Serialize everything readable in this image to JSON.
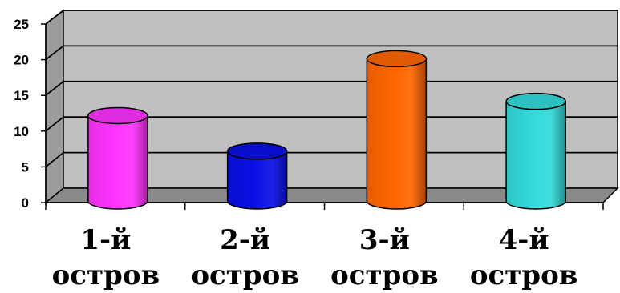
{
  "chart_data": {
    "type": "bar",
    "style": "3d-cylinder",
    "categories": [
      {
        "line1": "1-й",
        "line2": "остров"
      },
      {
        "line1": "2-й",
        "line2": "остров"
      },
      {
        "line1": "3-й",
        "line2": "остров"
      },
      {
        "line1": "4-й",
        "line2": "остров"
      }
    ],
    "values": [
      12,
      7,
      20,
      14
    ],
    "colors": [
      "#ff33ff",
      "#0a10e6",
      "#ff6600",
      "#33dada"
    ],
    "yticks": [
      "0",
      "5",
      "10",
      "15",
      "20",
      "25"
    ],
    "ylim": [
      0,
      25
    ],
    "grid": true,
    "title": "",
    "xlabel": "",
    "ylabel": ""
  }
}
